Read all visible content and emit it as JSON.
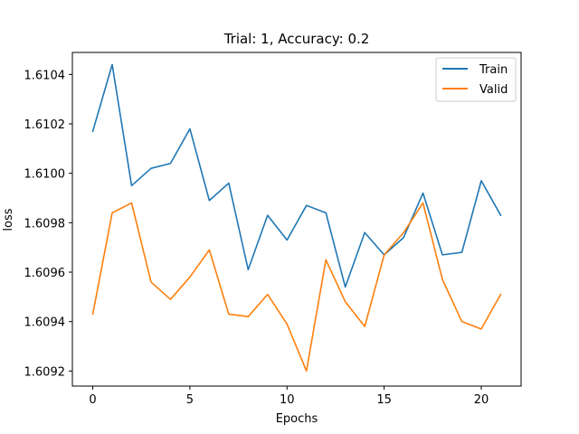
{
  "chart_data": {
    "type": "line",
    "title": "Trial: 1, Accuracy: 0.2",
    "xlabel": "Epochs",
    "ylabel": "loss",
    "x": [
      0,
      1,
      2,
      3,
      4,
      5,
      6,
      7,
      8,
      9,
      10,
      11,
      12,
      13,
      14,
      15,
      16,
      17,
      18,
      19,
      20,
      21
    ],
    "series": [
      {
        "name": "Train",
        "color": "#1f77b4",
        "values": [
          1.61017,
          1.61044,
          1.60995,
          1.61002,
          1.61004,
          1.61018,
          1.60989,
          1.60996,
          1.60961,
          1.60983,
          1.60973,
          1.60987,
          1.60984,
          1.60954,
          1.60976,
          1.60967,
          1.60974,
          1.60992,
          1.60967,
          1.60968,
          1.60997,
          1.60983
        ]
      },
      {
        "name": "Valid",
        "color": "#ff7f0e",
        "values": [
          1.60943,
          1.60984,
          1.60988,
          1.60956,
          1.60949,
          1.60958,
          1.60969,
          1.60943,
          1.60942,
          1.60951,
          1.60939,
          1.6092,
          1.60965,
          1.60948,
          1.60938,
          1.60967,
          1.60976,
          1.60988,
          1.60957,
          1.6094,
          1.60937,
          1.60951
        ]
      }
    ],
    "xlim": [
      -1.05,
      22.05
    ],
    "ylim": [
      1.609139,
      1.610489
    ],
    "xticks": [
      0,
      5,
      10,
      15,
      20
    ],
    "yticks": [
      1.6092,
      1.6094,
      1.6096,
      1.6098,
      1.61,
      1.6102,
      1.6104
    ],
    "ytick_labels": [
      "1.6092",
      "1.6094",
      "1.6096",
      "1.6098",
      "1.6100",
      "1.6102",
      "1.6104"
    ],
    "grid": false,
    "legend": "top-right"
  }
}
